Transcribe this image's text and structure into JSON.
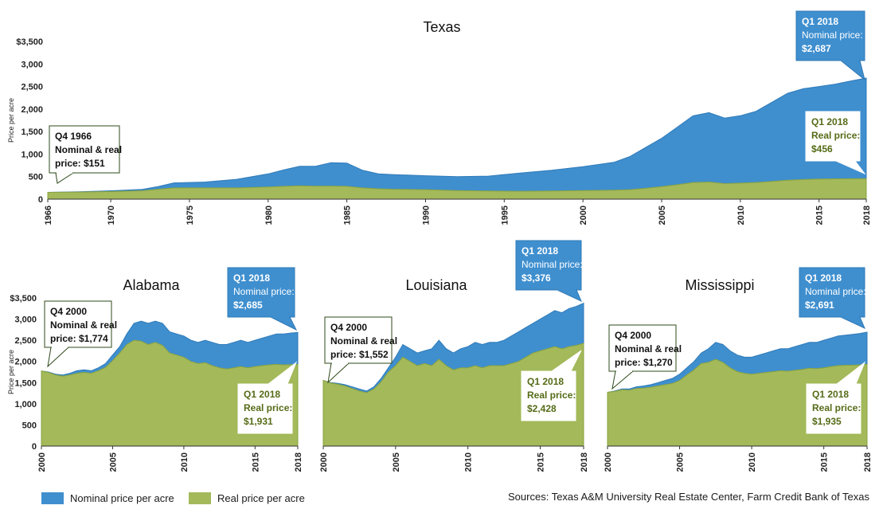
{
  "colors": {
    "nominal": "#3f8fcf",
    "nominal_dark": "#2f7ab8",
    "real": "#a3b95a",
    "real_dark": "#8aa33f",
    "callout_blue": "#3f8fcf",
    "callout_text_green": "#556b16",
    "callout_border_dark": "#2d4a1a"
  },
  "legend": {
    "nominal_label": "Nominal price per acre",
    "real_label": "Real price per acre"
  },
  "source": "Sources: Texas A&M University Real Estate Center, Farm Credit Bank of Texas",
  "chart_data": [
    {
      "type": "area",
      "title": "Texas",
      "ylabel": "Price per acre",
      "ylim": [
        0,
        3500
      ],
      "yticks": [
        "$3,500",
        "3,000",
        "2,500",
        "2,000",
        "1,500",
        "1,000",
        "500",
        "0"
      ],
      "xticks": [
        "1966",
        "1970",
        "1975",
        "1980",
        "1985",
        "1990",
        "1995",
        "2000",
        "2005",
        "2010",
        "2015",
        "2018"
      ],
      "x": [
        1966,
        1968,
        1970,
        1972,
        1973,
        1974,
        1976,
        1978,
        1980,
        1981,
        1982,
        1983,
        1984,
        1985,
        1986,
        1987,
        1988,
        1990,
        1992,
        1994,
        1996,
        1998,
        2000,
        2002,
        2003,
        2004,
        2005,
        2006,
        2007,
        2008,
        2009,
        2010,
        2011,
        2012,
        2013,
        2014,
        2015,
        2016,
        2017,
        2018
      ],
      "series": [
        {
          "name": "Nominal price per acre",
          "values": [
            151,
            165,
            185,
            215,
            280,
            360,
            380,
            440,
            560,
            650,
            730,
            730,
            810,
            800,
            640,
            560,
            545,
            520,
            500,
            510,
            580,
            640,
            720,
            820,
            950,
            1150,
            1350,
            1600,
            1850,
            1920,
            1800,
            1850,
            1950,
            2150,
            2350,
            2450,
            2500,
            2550,
            2620,
            2687
          ]
        },
        {
          "name": "Real price per acre",
          "values": [
            151,
            158,
            168,
            185,
            220,
            250,
            250,
            250,
            270,
            285,
            295,
            290,
            290,
            285,
            250,
            230,
            220,
            210,
            190,
            180,
            175,
            180,
            190,
            200,
            210,
            240,
            280,
            320,
            370,
            380,
            345,
            355,
            370,
            395,
            420,
            435,
            445,
            450,
            453,
            456
          ]
        }
      ],
      "callouts": [
        {
          "period": "Q4 1966",
          "line1": "Nominal & real",
          "line2": "price: $151"
        },
        {
          "period": "Q1 2018",
          "line1": "Nominal price:",
          "line2": "$2,687"
        },
        {
          "period": "Q1 2018",
          "line1": "Real price:",
          "line2": "$456"
        }
      ]
    },
    {
      "type": "area",
      "title": "Alabama",
      "ylabel": "Price per acre",
      "ylim": [
        0,
        3500
      ],
      "yticks": [
        "$3,500",
        "3,000",
        "2,500",
        "2,000",
        "1,500",
        "1,000",
        "500",
        "0"
      ],
      "xticks": [
        "2000",
        "2005",
        "2010",
        "2015",
        "2018"
      ],
      "x": [
        2000,
        2000.5,
        2001,
        2001.5,
        2002,
        2002.5,
        2003,
        2003.5,
        2004,
        2004.5,
        2005,
        2005.5,
        2006,
        2006.5,
        2007,
        2007.5,
        2008,
        2008.5,
        2009,
        2009.5,
        2010,
        2010.5,
        2011,
        2011.5,
        2012,
        2012.5,
        2013,
        2013.5,
        2014,
        2014.5,
        2015,
        2015.5,
        2016,
        2016.5,
        2017,
        2017.5,
        2018
      ],
      "series": [
        {
          "name": "Nominal price per acre",
          "values": [
            1774,
            1750,
            1700,
            1680,
            1720,
            1780,
            1800,
            1780,
            1850,
            1950,
            2150,
            2350,
            2650,
            2900,
            2950,
            2900,
            2950,
            2900,
            2700,
            2650,
            2600,
            2500,
            2450,
            2500,
            2450,
            2400,
            2400,
            2450,
            2500,
            2450,
            2500,
            2550,
            2600,
            2650,
            2650,
            2670,
            2685
          ]
        },
        {
          "name": "Real price per acre",
          "values": [
            1774,
            1740,
            1680,
            1650,
            1680,
            1720,
            1740,
            1720,
            1780,
            1860,
            2020,
            2200,
            2400,
            2500,
            2480,
            2400,
            2450,
            2380,
            2200,
            2150,
            2100,
            2000,
            1950,
            1970,
            1900,
            1850,
            1820,
            1850,
            1880,
            1850,
            1880,
            1900,
            1920,
            1930,
            1920,
            1925,
            1931
          ]
        }
      ],
      "callouts": [
        {
          "period": "Q4 2000",
          "line1": "Nominal & real",
          "line2": "price: $1,774"
        },
        {
          "period": "Q1 2018",
          "line1": "Nominal price:",
          "line2": "$2,685"
        },
        {
          "period": "Q1 2018",
          "line1": "Real price:",
          "line2": "$1,931"
        }
      ]
    },
    {
      "type": "area",
      "title": "Louisiana",
      "ylim": [
        0,
        3500
      ],
      "xticks": [
        "2000",
        "2005",
        "2010",
        "2015",
        "2018"
      ],
      "x": [
        2000,
        2000.5,
        2001,
        2001.5,
        2002,
        2002.5,
        2003,
        2003.5,
        2004,
        2004.5,
        2005,
        2005.5,
        2006,
        2006.5,
        2007,
        2007.5,
        2008,
        2008.5,
        2009,
        2009.5,
        2010,
        2010.5,
        2011,
        2011.5,
        2012,
        2012.5,
        2013,
        2013.5,
        2014,
        2014.5,
        2015,
        2015.5,
        2016,
        2016.5,
        2017,
        2017.5,
        2018
      ],
      "series": [
        {
          "name": "Nominal price per acre",
          "values": [
            1552,
            1500,
            1480,
            1450,
            1400,
            1350,
            1300,
            1400,
            1600,
            1850,
            2100,
            2400,
            2300,
            2200,
            2250,
            2300,
            2500,
            2300,
            2200,
            2300,
            2350,
            2450,
            2400,
            2450,
            2450,
            2500,
            2600,
            2700,
            2800,
            2900,
            3000,
            3100,
            3200,
            3150,
            3250,
            3300,
            3376
          ]
        },
        {
          "name": "Real price per acre",
          "values": [
            1552,
            1490,
            1460,
            1420,
            1360,
            1300,
            1260,
            1350,
            1520,
            1750,
            1900,
            2100,
            2000,
            1900,
            1950,
            1900,
            2050,
            1900,
            1800,
            1850,
            1850,
            1900,
            1850,
            1900,
            1900,
            1900,
            1950,
            2000,
            2100,
            2200,
            2250,
            2300,
            2350,
            2300,
            2350,
            2380,
            2428
          ]
        }
      ],
      "callouts": [
        {
          "period": "Q4 2000",
          "line1": "Nominal & real",
          "line2": "price: $1,552"
        },
        {
          "period": "Q1 2018",
          "line1": "Nominal price:",
          "line2": "$3,376"
        },
        {
          "period": "Q1 2018",
          "line1": "Real price:",
          "line2": "$2,428"
        }
      ]
    },
    {
      "type": "area",
      "title": "Mississippi",
      "ylim": [
        0,
        3500
      ],
      "xticks": [
        "2000",
        "2005",
        "2010",
        "2015",
        "2018"
      ],
      "x": [
        2000,
        2000.5,
        2001,
        2001.5,
        2002,
        2002.5,
        2003,
        2003.5,
        2004,
        2004.5,
        2005,
        2005.5,
        2006,
        2006.5,
        2007,
        2007.5,
        2008,
        2008.5,
        2009,
        2009.5,
        2010,
        2010.5,
        2011,
        2011.5,
        2012,
        2012.5,
        2013,
        2013.5,
        2014,
        2014.5,
        2015,
        2015.5,
        2016,
        2016.5,
        2017,
        2017.5,
        2018
      ],
      "series": [
        {
          "name": "Nominal price per acre",
          "values": [
            1270,
            1300,
            1350,
            1350,
            1400,
            1420,
            1450,
            1500,
            1550,
            1600,
            1700,
            1850,
            2000,
            2200,
            2300,
            2450,
            2400,
            2250,
            2150,
            2100,
            2100,
            2150,
            2200,
            2250,
            2300,
            2300,
            2350,
            2400,
            2450,
            2450,
            2500,
            2550,
            2600,
            2620,
            2640,
            2660,
            2691
          ]
        },
        {
          "name": "Real price per acre",
          "values": [
            1270,
            1290,
            1330,
            1320,
            1360,
            1370,
            1390,
            1420,
            1450,
            1480,
            1550,
            1680,
            1800,
            1950,
            1980,
            2050,
            1980,
            1850,
            1760,
            1720,
            1700,
            1720,
            1740,
            1760,
            1780,
            1770,
            1790,
            1810,
            1840,
            1830,
            1850,
            1880,
            1900,
            1910,
            1910,
            1920,
            1935
          ]
        }
      ],
      "callouts": [
        {
          "period": "Q4 2000",
          "line1": "Nominal & real",
          "line2": "price: $1,270"
        },
        {
          "period": "Q1 2018",
          "line1": "Nominal price:",
          "line2": "$2,691"
        },
        {
          "period": "Q1 2018",
          "line1": "Real price:",
          "line2": "$1,935"
        }
      ]
    }
  ]
}
